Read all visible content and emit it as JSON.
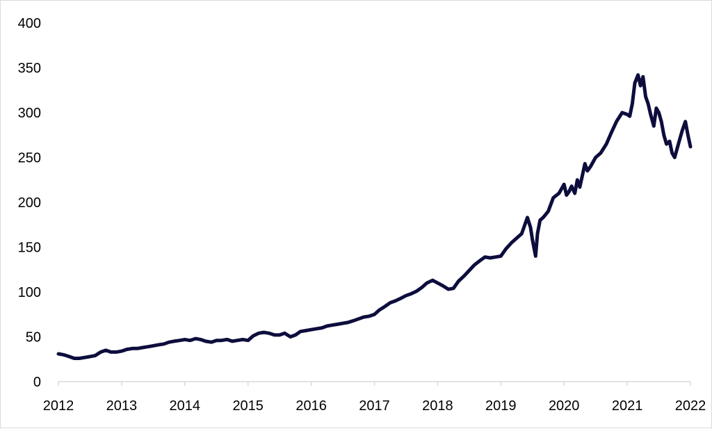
{
  "colors": {
    "line": "#0d0d3d",
    "axis": "#d9d9d9",
    "text": "#000000",
    "background": "#ffffff"
  },
  "chart_data": {
    "type": "line",
    "title": "",
    "xlabel": "",
    "ylabel": "",
    "grid": false,
    "legend": "none",
    "xlim": [
      2012,
      2022
    ],
    "ylim": [
      0,
      400
    ],
    "x_ticks": [
      "2012",
      "2013",
      "2014",
      "2015",
      "2016",
      "2017",
      "2018",
      "2019",
      "2020",
      "2021",
      "2022"
    ],
    "y_ticks": [
      "0",
      "50",
      "100",
      "150",
      "200",
      "250",
      "300",
      "350",
      "400"
    ],
    "series": [
      {
        "x": [
          2012.0,
          2012.08,
          2012.17,
          2012.25,
          2012.33,
          2012.42,
          2012.5,
          2012.58,
          2012.67,
          2012.75,
          2012.83,
          2012.92,
          2013.0,
          2013.08,
          2013.17,
          2013.25,
          2013.33,
          2013.42,
          2013.5,
          2013.58,
          2013.67,
          2013.75,
          2013.83,
          2013.92,
          2014.0,
          2014.08,
          2014.17,
          2014.25,
          2014.33,
          2014.42,
          2014.5,
          2014.58,
          2014.67,
          2014.75,
          2014.83,
          2014.92,
          2015.0,
          2015.08,
          2015.17,
          2015.25,
          2015.33,
          2015.42,
          2015.5,
          2015.58,
          2015.67,
          2015.75,
          2015.83,
          2015.92,
          2016.0,
          2016.08,
          2016.17,
          2016.25,
          2016.33,
          2016.42,
          2016.5,
          2016.58,
          2016.67,
          2016.75,
          2016.83,
          2016.92,
          2017.0,
          2017.08,
          2017.17,
          2017.25,
          2017.33,
          2017.42,
          2017.5,
          2017.58,
          2017.67,
          2017.75,
          2017.83,
          2017.92,
          2018.0,
          2018.08,
          2018.17,
          2018.25,
          2018.33,
          2018.42,
          2018.5,
          2018.58,
          2018.67,
          2018.75,
          2018.83,
          2018.92,
          2019.0,
          2019.08,
          2019.17,
          2019.25,
          2019.33,
          2019.42,
          2019.47,
          2019.5,
          2019.55,
          2019.58,
          2019.62,
          2019.67,
          2019.75,
          2019.83,
          2019.92,
          2020.0,
          2020.04,
          2020.08,
          2020.12,
          2020.17,
          2020.21,
          2020.25,
          2020.29,
          2020.33,
          2020.37,
          2020.42,
          2020.5,
          2020.58,
          2020.67,
          2020.75,
          2020.83,
          2020.92,
          2021.0,
          2021.04,
          2021.08,
          2021.12,
          2021.17,
          2021.21,
          2021.25,
          2021.29,
          2021.33,
          2021.37,
          2021.42,
          2021.46,
          2021.5,
          2021.54,
          2021.58,
          2021.62,
          2021.67,
          2021.71,
          2021.75,
          2021.79,
          2021.83,
          2021.87,
          2021.92,
          2021.96,
          2022.0
        ],
        "values": [
          31,
          30,
          28,
          26,
          26,
          27,
          28,
          29,
          33,
          35,
          33,
          33,
          34,
          36,
          37,
          37,
          38,
          39,
          40,
          41,
          42,
          44,
          45,
          46,
          47,
          46,
          48,
          47,
          45,
          44,
          46,
          46,
          47,
          45,
          46,
          47,
          46,
          51,
          54,
          55,
          54,
          52,
          52,
          54,
          50,
          52,
          56,
          57,
          58,
          59,
          60,
          62,
          63,
          64,
          65,
          66,
          68,
          70,
          72,
          73,
          75,
          80,
          84,
          88,
          90,
          93,
          96,
          98,
          101,
          105,
          110,
          113,
          110,
          107,
          103,
          104,
          112,
          118,
          124,
          130,
          135,
          139,
          138,
          139,
          140,
          148,
          155,
          160,
          165,
          183,
          172,
          158,
          140,
          165,
          180,
          183,
          190,
          205,
          210,
          220,
          208,
          212,
          218,
          210,
          225,
          217,
          230,
          243,
          235,
          240,
          250,
          255,
          265,
          278,
          290,
          300,
          298,
          296,
          310,
          333,
          342,
          330,
          340,
          318,
          310,
          298,
          285,
          305,
          300,
          290,
          275,
          265,
          268,
          255,
          250,
          260,
          270,
          280,
          290,
          275,
          262
        ]
      }
    ]
  }
}
